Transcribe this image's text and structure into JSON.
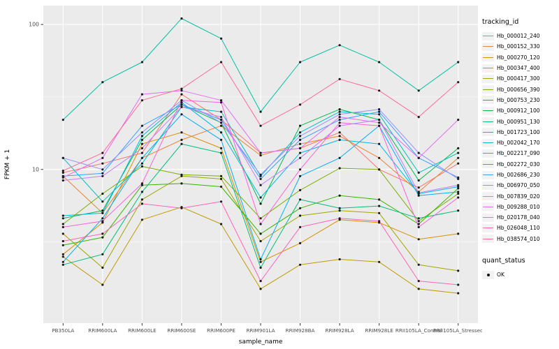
{
  "figure": {
    "background": "#ffffff",
    "panel_background": "#ebebeb",
    "grid_color": "#ffffff"
  },
  "chart_data": {
    "type": "line",
    "title": "",
    "xlabel": "sample_name",
    "ylabel": "FPKM + 1",
    "y_scale": "log10",
    "ylim": [
      0.87,
      135
    ],
    "y_ticks": [
      {
        "value": 10,
        "label": "10"
      },
      {
        "value": 100,
        "label": "100"
      }
    ],
    "y_minor": [
      3.162,
      31.623
    ],
    "grid": true,
    "legend_position": "right",
    "legend_title": "tracking_id",
    "point_color": "#1a1a1a",
    "categories": [
      "PB350LA",
      "RRIM600LA",
      "RRIM600LE",
      "RRIM600SE",
      "RRIM600PE",
      "RRIM901LA",
      "RRIM928BA",
      "RRIM928LA",
      "RRIM928LE",
      "RRII105LA_Control",
      "RRII105LA_Stressed"
    ],
    "series": [
      {
        "name": "Hb_000012_240",
        "color": "#F8766D",
        "values": [
          9.5,
          11,
          13,
          33,
          22,
          13,
          14,
          18,
          10,
          7.5,
          11
        ]
      },
      {
        "name": "Hb_000152_330",
        "color": "#EA8331",
        "values": [
          9,
          5,
          12,
          16,
          20,
          12.5,
          15,
          17,
          12,
          7,
          12
        ]
      },
      {
        "name": "Hb_000270_120",
        "color": "#D89000",
        "values": [
          2.6,
          4.3,
          15,
          18,
          14,
          2.3,
          3.1,
          4.5,
          4.3,
          3.3,
          3.6
        ]
      },
      {
        "name": "Hb_000347_400",
        "color": "#C09B00",
        "values": [
          2.5,
          1.6,
          4.5,
          5.5,
          4.2,
          1.5,
          2.2,
          2.4,
          2.3,
          1.5,
          1.4
        ]
      },
      {
        "name": "Hb_000417_300",
        "color": "#A3A500",
        "values": [
          3.6,
          2.1,
          6.2,
          9.0,
          8.6,
          3.2,
          4.8,
          5.2,
          5.0,
          2.2,
          2.0
        ]
      },
      {
        "name": "Hb_000656_390",
        "color": "#7CAE00",
        "values": [
          4.2,
          6.8,
          10.5,
          9.2,
          9.0,
          4.6,
          7.2,
          10.2,
          10.0,
          4.4,
          6.8
        ]
      },
      {
        "name": "Hb_000753_230",
        "color": "#39B600",
        "values": [
          3.0,
          3.4,
          7.8,
          8.0,
          7.6,
          3.6,
          5.4,
          6.6,
          6.2,
          4.2,
          7.4
        ]
      },
      {
        "name": "Hb_000912_100",
        "color": "#00BB4E",
        "values": [
          4.6,
          5.2,
          16,
          28,
          21,
          5.8,
          20,
          26,
          22,
          8.4,
          14
        ]
      },
      {
        "name": "Hb_000951_130",
        "color": "#00BF7D",
        "values": [
          2.2,
          2.6,
          7.0,
          15,
          13,
          2.1,
          6.2,
          5.4,
          5.6,
          4.6,
          5.2
        ]
      },
      {
        "name": "Hb_001723_100",
        "color": "#00C1A3",
        "values": [
          22,
          40,
          55,
          110,
          80,
          25,
          55,
          72,
          55,
          35,
          55
        ]
      },
      {
        "name": "Hb_002042_170",
        "color": "#00BFC4",
        "values": [
          12,
          6.0,
          11,
          27,
          25,
          9.0,
          18,
          25,
          24,
          9.5,
          13
        ]
      },
      {
        "name": "Hb_002217_090",
        "color": "#00BAE0",
        "values": [
          4.8,
          5.0,
          17,
          29,
          18,
          6.4,
          13,
          16,
          15,
          6.8,
          7.6
        ]
      },
      {
        "name": "Hb_002272_030",
        "color": "#00B0F6",
        "values": [
          2.3,
          4.6,
          12,
          24,
          16,
          2.4,
          9.0,
          12,
          20,
          6.6,
          7.0
        ]
      },
      {
        "name": "Hb_002686_230",
        "color": "#35A2FF",
        "values": [
          9.0,
          9.4,
          20,
          28,
          22,
          8.6,
          16,
          22,
          25,
          12,
          8.8
        ]
      },
      {
        "name": "Hb_006970_050",
        "color": "#9590FF",
        "values": [
          12,
          10,
          18,
          30,
          21,
          9.2,
          17,
          24,
          26,
          13,
          8.6
        ]
      },
      {
        "name": "Hb_007839_020",
        "color": "#C77CFF",
        "values": [
          8.4,
          9.0,
          14,
          27,
          23,
          7.8,
          12,
          20,
          22,
          6.9,
          7.8
        ]
      },
      {
        "name": "Hb_009288_010",
        "color": "#E76BF3",
        "values": [
          8.8,
          12,
          33,
          35,
          30,
          13,
          14,
          23,
          21,
          12,
          22
        ]
      },
      {
        "name": "Hb_020178_040",
        "color": "#FA62DB",
        "values": [
          4.0,
          4.4,
          8.0,
          30,
          29,
          4.2,
          10,
          21,
          20,
          4.0,
          6.4
        ]
      },
      {
        "name": "Hb_026048_110",
        "color": "#FF62BC",
        "values": [
          3.2,
          3.6,
          5.8,
          5.4,
          6.0,
          1.7,
          4.0,
          4.6,
          4.4,
          1.7,
          1.6
        ]
      },
      {
        "name": "Hb_038574_010",
        "color": "#FF6A98",
        "values": [
          9.8,
          13,
          30,
          36,
          55,
          20,
          28,
          42,
          35,
          23,
          40
        ]
      }
    ],
    "quant_legend": {
      "title": "quant_status",
      "items": [
        {
          "label": "OK"
        }
      ]
    }
  }
}
